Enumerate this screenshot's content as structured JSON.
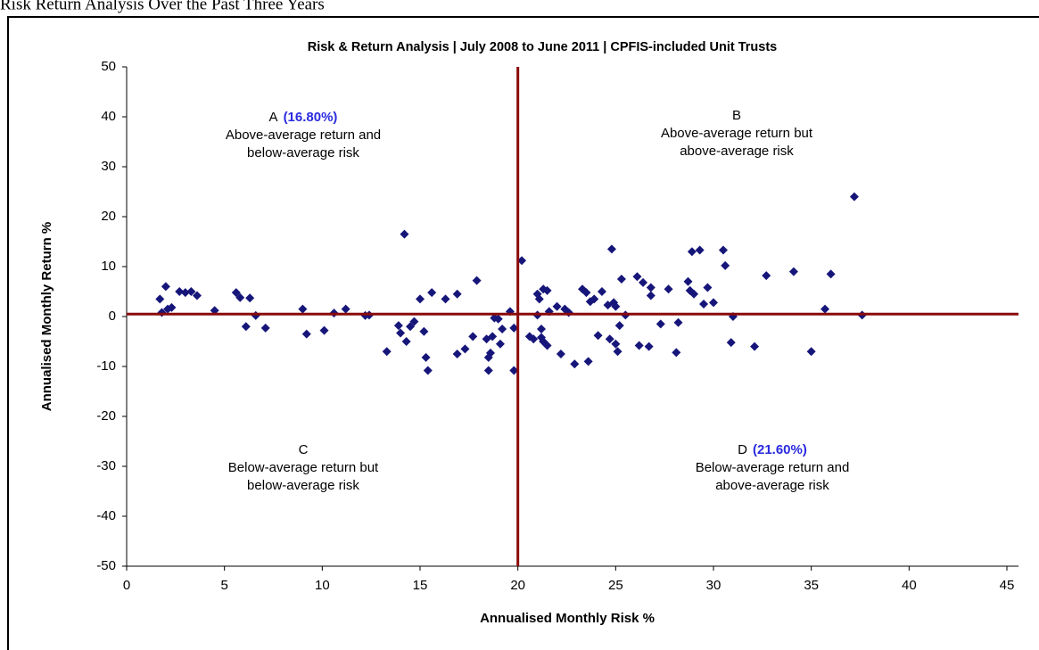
{
  "page_title": "Risk Return Analysis Over the Past Three Years",
  "chart_data": {
    "type": "scatter",
    "title": "Risk & Return Analysis | July 2008 to June 2011 | CPFIS-included Unit Trusts",
    "xlabel": "Annualised Monthly Risk %",
    "ylabel": "Annualised Monthly Return %",
    "color": "#16167a",
    "xlim": [
      0,
      45
    ],
    "xticks": [
      0,
      5,
      10,
      15,
      20,
      25,
      30,
      35,
      40,
      45
    ],
    "ylim": [
      -50,
      50
    ],
    "yticks": [
      -50,
      -40,
      -30,
      -20,
      -10,
      0,
      10,
      20,
      30,
      40,
      50
    ],
    "reference_lines": {
      "x": 20,
      "y": 0.5,
      "color": "#8b0a0a"
    },
    "x": [
      1.7,
      1.8,
      2.0,
      2.1,
      2.3,
      2.7,
      3.0,
      3.3,
      3.6,
      4.5,
      5.6,
      5.8,
      6.1,
      6.3,
      6.6,
      7.1,
      9.0,
      9.2,
      10.1,
      10.6,
      11.2,
      12.2,
      12.4,
      13.3,
      13.9,
      14.0,
      14.2,
      14.3,
      14.5,
      14.7,
      15.0,
      15.2,
      15.3,
      15.4,
      15.6,
      16.3,
      16.9,
      16.9,
      17.3,
      17.7,
      17.9,
      18.4,
      18.5,
      18.5,
      18.6,
      18.7,
      18.8,
      19.0,
      19.1,
      19.2,
      19.6,
      19.8,
      19.8,
      20.2,
      20.6,
      20.8,
      21.0,
      21.0,
      21.1,
      21.2,
      21.2,
      21.3,
      21.3,
      21.5,
      21.5,
      21.6,
      22.0,
      22.2,
      22.4,
      22.6,
      22.9,
      23.3,
      23.5,
      23.6,
      23.7,
      23.9,
      24.1,
      24.3,
      24.6,
      24.7,
      24.9,
      25.0,
      24.8,
      25.1,
      25.0,
      25.3,
      25.2,
      25.5,
      26.1,
      26.2,
      26.4,
      26.7,
      26.8,
      26.8,
      27.3,
      27.7,
      28.1,
      28.2,
      28.7,
      28.8,
      28.9,
      29.0,
      29.3,
      29.5,
      29.7,
      30.0,
      30.5,
      30.6,
      30.9,
      31.0,
      32.1,
      32.7,
      34.1,
      35.0,
      35.7,
      36.0,
      37.2,
      37.6
    ],
    "values": [
      3.5,
      0.8,
      6,
      1.5,
      1.8,
      5,
      4.8,
      5,
      4.2,
      1.2,
      4.8,
      3.8,
      -2,
      3.7,
      0.2,
      -2.3,
      1.5,
      -3.5,
      -2.8,
      0.7,
      1.5,
      0.2,
      0.3,
      -7,
      -1.8,
      -3.3,
      16.5,
      -5,
      -2,
      -1,
      3.5,
      -3,
      -8.2,
      -10.8,
      4.8,
      3.5,
      4.5,
      -7.5,
      -6.5,
      -4,
      7.2,
      -4.5,
      -8.2,
      -10.8,
      -7.3,
      -4,
      -0.3,
      -0.5,
      -5.5,
      -2.5,
      1,
      -2.3,
      -10.8,
      11.2,
      -4,
      -4.5,
      0.3,
      4.5,
      3.5,
      -4.2,
      -2.5,
      5.5,
      -5,
      5.2,
      -5.8,
      1,
      2,
      -7.5,
      1.5,
      0.8,
      -9.5,
      5.5,
      4.8,
      -9,
      3,
      3.5,
      -3.8,
      5,
      2.3,
      -4.5,
      2.8,
      -5.5,
      13.5,
      -7,
      2,
      7.5,
      -1.8,
      0.3,
      8,
      -5.8,
      6.8,
      -6,
      5.8,
      4.2,
      -1.5,
      5.5,
      -7.2,
      -1.2,
      7,
      5.2,
      13,
      4.5,
      13.3,
      2.5,
      5.8,
      2.8,
      13.3,
      10.2,
      -5.2,
      0,
      -6,
      8.2,
      9,
      -7,
      1.5,
      8.5,
      24,
      0.3
    ],
    "quadrants": [
      {
        "letter": "A",
        "share": "(16.80%)",
        "lines": [
          "Above-average return and",
          "below-average risk"
        ]
      },
      {
        "letter": "B",
        "lines": [
          "Above-average return but",
          "above-average risk"
        ]
      },
      {
        "letter": "C",
        "lines": [
          "Below-average return but",
          "below-average risk"
        ]
      },
      {
        "letter": "D",
        "share": "(21.60%)",
        "lines": [
          "Below-average return and",
          "above-average risk"
        ]
      }
    ]
  }
}
